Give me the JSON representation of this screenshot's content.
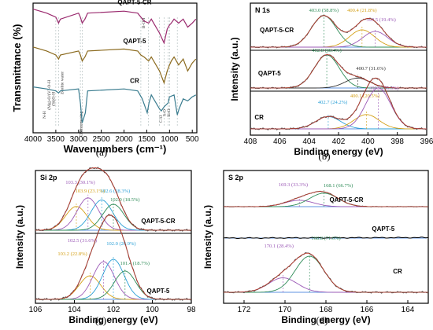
{
  "chart_data": [
    {
      "id": "a",
      "type": "line",
      "panel_label": "(a)",
      "xlabel": "Wavenumbers (cm⁻¹)",
      "ylabel": "Transmittance (%)",
      "xlim": [
        4000,
        400
      ],
      "xticks": [
        4000,
        3500,
        3000,
        2500,
        2000,
        1500,
        1000,
        500
      ],
      "series": [
        {
          "name": "QAPT-5-CR",
          "color": "#9a2a6e",
          "x": [
            4000,
            3700,
            3500,
            3440,
            3400,
            3000,
            2960,
            2920,
            2860,
            2800,
            2000,
            1700,
            1630,
            1560,
            1460,
            1400,
            1220,
            1120,
            1050,
            1000,
            960,
            900,
            800,
            700,
            600,
            500,
            420
          ],
          "y": [
            97,
            95,
            93,
            90,
            92,
            95,
            93,
            90,
            92,
            95,
            96,
            95,
            93,
            91,
            90,
            92,
            85,
            80,
            87,
            89,
            90,
            92,
            90,
            92,
            88,
            90,
            92
          ]
        },
        {
          "name": "QAPT-5",
          "color": "#8b6a1e",
          "x": [
            4000,
            3700,
            3500,
            3440,
            3400,
            3000,
            2960,
            2920,
            2860,
            2800,
            2000,
            1700,
            1630,
            1560,
            1460,
            1400,
            1220,
            1120,
            1050,
            1000,
            960,
            900,
            800,
            700,
            600,
            500,
            420
          ],
          "y": [
            78,
            76,
            74,
            72,
            74,
            76,
            74,
            71,
            73,
            76,
            77,
            76,
            74,
            73,
            71,
            73,
            66,
            60,
            66,
            69,
            71,
            73,
            69,
            72,
            66,
            70,
            72
          ]
        },
        {
          "name": "CR",
          "color": "#3a7c8f",
          "x": [
            4000,
            3700,
            3500,
            3440,
            3400,
            3000,
            2960,
            2920,
            2850,
            2800,
            2000,
            1700,
            1600,
            1490,
            1450,
            1400,
            1220,
            1180,
            1120,
            1030,
            1000,
            900,
            830,
            790,
            700,
            600,
            500,
            420
          ],
          "y": [
            58,
            57,
            56,
            55,
            56,
            57,
            50,
            40,
            45,
            56,
            57,
            56,
            52,
            45,
            50,
            54,
            47,
            46,
            48,
            50,
            53,
            54,
            44,
            47,
            52,
            51,
            53,
            54
          ]
        }
      ],
      "annotations": [
        "(Mg)-O/(V)-O-H",
        "(Si)O-H",
        "Zeolite water",
        "C-H",
        "Benzene ring",
        "B-OH",
        "N-O",
        "C-O",
        "S-O",
        "Si-O",
        "N-H"
      ]
    },
    {
      "id": "b",
      "type": "line",
      "panel_label": "(b)",
      "core_level": "N 1s",
      "xlabel": "Binding energy (eV)",
      "ylabel": "Intensity (a.u.)",
      "xlim": [
        408,
        396
      ],
      "xticks": [
        408,
        406,
        404,
        402,
        400,
        398,
        396
      ],
      "samples": [
        {
          "name": "QAPT-5-CR",
          "peaks": [
            {
              "label": "403.0 (58.8%)",
              "center": 403.0,
              "color": "#2e8b57"
            },
            {
              "label": "400.4 (21.8%)",
              "center": 400.4,
              "color": "#d4a017"
            },
            {
              "label": "399.5 (19.4%)",
              "center": 399.5,
              "color": "#9b59b6"
            }
          ]
        },
        {
          "name": "QAPT-5",
          "peaks": [
            {
              "label": "402.8 (68.4%)",
              "center": 402.8,
              "color": "#2e8b57"
            },
            {
              "label": "400.7 (31.6%)",
              "center": 400.7,
              "color": "#333333"
            }
          ]
        },
        {
          "name": "CR",
          "peaks": [
            {
              "label": "402.7 (24.2%)",
              "center": 402.7,
              "color": "#2a9fd6"
            },
            {
              "label": "400.1 (20.5%)",
              "center": 400.1,
              "color": "#d4a017"
            },
            {
              "label": "399.3 (55.3%)",
              "center": 399.3,
              "color": "#9b59b6"
            }
          ]
        }
      ]
    },
    {
      "id": "c",
      "type": "line",
      "panel_label": "(c)",
      "core_level": "Si 2p",
      "xlabel": "Binding energy (eV)",
      "ylabel": "Intensity (a.u.)",
      "xlim": [
        106,
        98
      ],
      "xticks": [
        106,
        104,
        102,
        100,
        98
      ],
      "samples": [
        {
          "name": "QAPT-5-CR",
          "peaks": [
            {
              "label": "103.9 (23.1%)",
              "center": 103.9,
              "color": "#d4a017"
            },
            {
              "label": "103.3 (30.1%)",
              "center": 103.3,
              "color": "#9b59b6"
            },
            {
              "label": "102.6 (28.3%)",
              "center": 102.6,
              "color": "#2a9fd6"
            },
            {
              "label": "102.0 (18.5%)",
              "center": 102.0,
              "color": "#2e8b57"
            }
          ]
        },
        {
          "name": "QAPT-5",
          "peaks": [
            {
              "label": "103.2 (22.8%)",
              "center": 103.2,
              "color": "#d4a017"
            },
            {
              "label": "102.5 (31.6%)",
              "center": 102.5,
              "color": "#9b59b6"
            },
            {
              "label": "102.0 (26.9%)",
              "center": 102.0,
              "color": "#2a9fd6"
            },
            {
              "label": "101.4 (18.7%)",
              "center": 101.4,
              "color": "#2e8b57"
            }
          ]
        }
      ]
    },
    {
      "id": "d",
      "type": "line",
      "panel_label": "(d)",
      "core_level": "S 2p",
      "xlabel": "Binding energy (eV)",
      "ylabel": "Intensity (a.u.)",
      "xlim": [
        173,
        163
      ],
      "xticks": [
        172,
        170,
        168,
        166,
        164
      ],
      "samples": [
        {
          "name": "QAPT-5-CR",
          "peaks": [
            {
              "label": "169.3 (33.3%)",
              "center": 169.3,
              "color": "#9b59b6"
            },
            {
              "label": "168.1 (66.7%)",
              "center": 168.1,
              "color": "#2e8b57"
            }
          ]
        },
        {
          "name": "QAPT-5",
          "peaks": []
        },
        {
          "name": "CR",
          "peaks": [
            {
              "label": "170.1 (28.4%)",
              "center": 170.1,
              "color": "#9b59b6"
            },
            {
              "label": "168.8 (71.6%)",
              "center": 168.8,
              "color": "#2e8b57"
            }
          ]
        }
      ]
    }
  ]
}
